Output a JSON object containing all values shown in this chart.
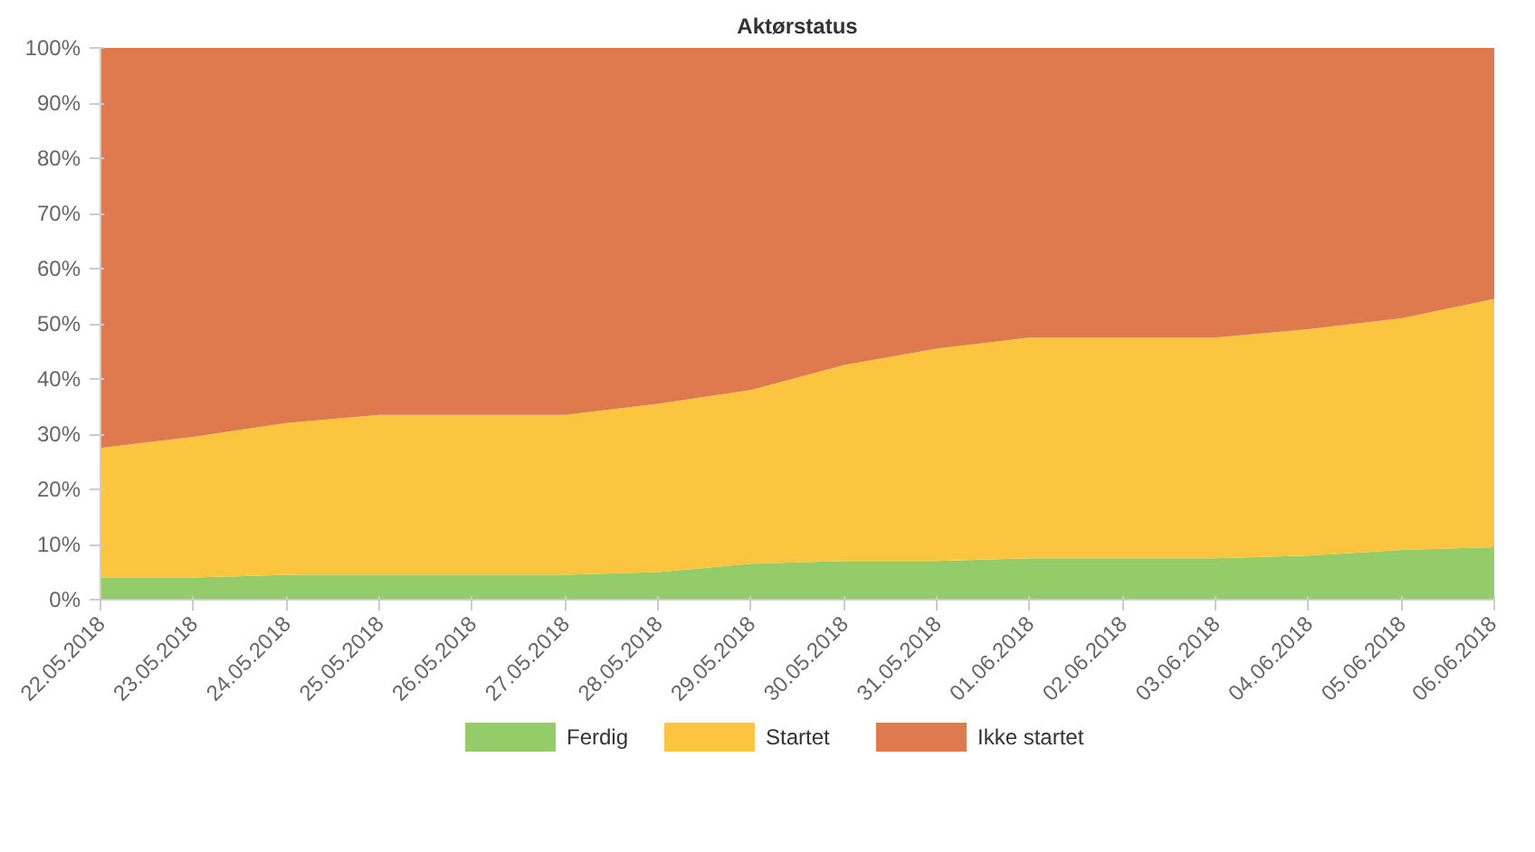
{
  "chart_data": {
    "type": "area",
    "title": "Aktørstatus",
    "stacked": true,
    "categories": [
      "22.05.2018",
      "23.05.2018",
      "24.05.2018",
      "25.05.2018",
      "26.05.2018",
      "27.05.2018",
      "28.05.2018",
      "29.05.2018",
      "30.05.2018",
      "31.05.2018",
      "01.06.2018",
      "02.06.2018",
      "03.06.2018",
      "04.06.2018",
      "05.06.2018",
      "06.06.2018"
    ],
    "series": [
      {
        "name": "Ferdig",
        "color": "#94cc69",
        "values": [
          4,
          4,
          4.5,
          4.5,
          4.5,
          4.5,
          5,
          6.5,
          7,
          7,
          7.5,
          7.5,
          7.5,
          8,
          9,
          9.5
        ]
      },
      {
        "name": "Startet",
        "color": "#fcc540",
        "values": [
          23.5,
          25.5,
          27.5,
          29,
          29,
          29,
          30.5,
          31.5,
          35.5,
          38.5,
          40,
          40,
          40,
          41,
          42,
          45
        ]
      },
      {
        "name": "Ikke startet",
        "color": "#df7a4f",
        "values": [
          72.5,
          70.5,
          68,
          66.5,
          66.5,
          66.5,
          64.5,
          62,
          57.5,
          54.5,
          52.5,
          52.5,
          52.5,
          51,
          49,
          45.5
        ]
      }
    ],
    "ylim": [
      0,
      100
    ],
    "yticks": [
      {
        "value": 0,
        "label": "0%"
      },
      {
        "value": 10,
        "label": "10%"
      },
      {
        "value": 20,
        "label": "20%"
      },
      {
        "value": 30,
        "label": "30%"
      },
      {
        "value": 40,
        "label": "40%"
      },
      {
        "value": 50,
        "label": "50%"
      },
      {
        "value": 60,
        "label": "60%"
      },
      {
        "value": 70,
        "label": "70%"
      },
      {
        "value": 80,
        "label": "80%"
      },
      {
        "value": 90,
        "label": "90%"
      },
      {
        "value": 100,
        "label": "100%"
      }
    ],
    "legend": "bottom"
  }
}
